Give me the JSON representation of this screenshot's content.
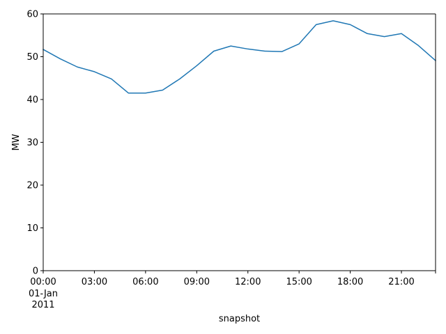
{
  "chart_data": {
    "type": "line",
    "title": "",
    "xlabel": "snapshot",
    "ylabel": "MW",
    "x": [
      "2011-01-01 00:00",
      "2011-01-01 01:00",
      "2011-01-01 02:00",
      "2011-01-01 03:00",
      "2011-01-01 04:00",
      "2011-01-01 05:00",
      "2011-01-01 06:00",
      "2011-01-01 07:00",
      "2011-01-01 08:00",
      "2011-01-01 09:00",
      "2011-01-01 10:00",
      "2011-01-01 11:00",
      "2011-01-01 12:00",
      "2011-01-01 13:00",
      "2011-01-01 14:00",
      "2011-01-01 15:00",
      "2011-01-01 16:00",
      "2011-01-01 17:00",
      "2011-01-01 18:00",
      "2011-01-01 19:00",
      "2011-01-01 20:00",
      "2011-01-01 21:00",
      "2011-01-01 22:00",
      "2011-01-01 23:00"
    ],
    "series": [
      {
        "color": "#1f77b4",
        "values": [
          51.7,
          49.5,
          47.6,
          46.5,
          44.8,
          41.5,
          41.5,
          42.2,
          44.8,
          47.9,
          51.3,
          52.5,
          51.8,
          51.3,
          51.2,
          53.0,
          57.5,
          58.4,
          57.5,
          55.4,
          54.7,
          55.4,
          52.6,
          49.1
        ]
      }
    ],
    "xlim": [
      "2011-01-01 00:00",
      "2011-01-01 23:00"
    ],
    "ylim": [
      0,
      60
    ],
    "yticks": [
      0,
      10,
      20,
      30,
      40,
      50,
      60
    ],
    "xticks": [
      {
        "x": "2011-01-01 00:00",
        "label": "00:00",
        "sublabel1": "01-Jan",
        "sublabel2": "2011"
      },
      {
        "x": "2011-01-01 03:00",
        "label": "03:00"
      },
      {
        "x": "2011-01-01 06:00",
        "label": "06:00"
      },
      {
        "x": "2011-01-01 09:00",
        "label": "09:00"
      },
      {
        "x": "2011-01-01 12:00",
        "label": "12:00"
      },
      {
        "x": "2011-01-01 15:00",
        "label": "15:00"
      },
      {
        "x": "2011-01-01 18:00",
        "label": "18:00"
      },
      {
        "x": "2011-01-01 21:00",
        "label": "21:00"
      },
      {
        "x": "2011-01-01 23:00",
        "label": ""
      }
    ],
    "grid": false,
    "legend": "none"
  }
}
